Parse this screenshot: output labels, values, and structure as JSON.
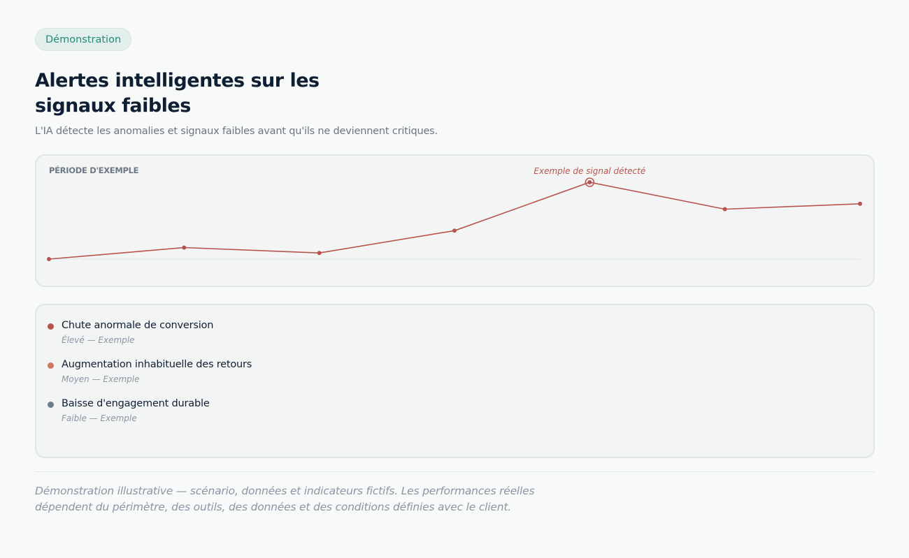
{
  "badge": "Démonstration",
  "title": "Alertes intelligentes sur les signaux faibles",
  "subtitle": "L'IA détecte les anomalies et signaux faibles avant qu'ils ne deviennent critiques.",
  "chart": {
    "period_label": "PÉRIODE D'EXEMPLE",
    "annotation": "Exemple de signal détecté",
    "line_color": "#b85450",
    "baseline_color": "#e2e8e8"
  },
  "chart_data": {
    "type": "line",
    "title": "",
    "xlabel": "",
    "ylabel": "",
    "x": [
      1,
      2,
      3,
      4,
      5,
      6,
      7
    ],
    "series": [
      {
        "values": [
          0,
          0.15,
          0.08,
          0.37,
          1.0,
          0.65,
          0.72
        ]
      }
    ],
    "highlight_index": 4,
    "annotation": "Exemple de signal détecté",
    "grid": false,
    "ylim": [
      0,
      1
    ]
  },
  "alerts": [
    {
      "title": "Chute anormale de conversion",
      "meta": "Élevé — Exemple",
      "color": "#b85450"
    },
    {
      "title": "Augmentation inhabituelle des retours",
      "meta": "Moyen — Exemple",
      "color": "#c97a5c"
    },
    {
      "title": "Baisse d'engagement durable",
      "meta": "Faible — Exemple",
      "color": "#6f7b8b"
    }
  ],
  "disclaimer": "Démonstration illustrative — scénario, données et indicateurs fictifs. Les performances réelles dépendent du périmètre, des outils, des données et des conditions définies avec le client."
}
